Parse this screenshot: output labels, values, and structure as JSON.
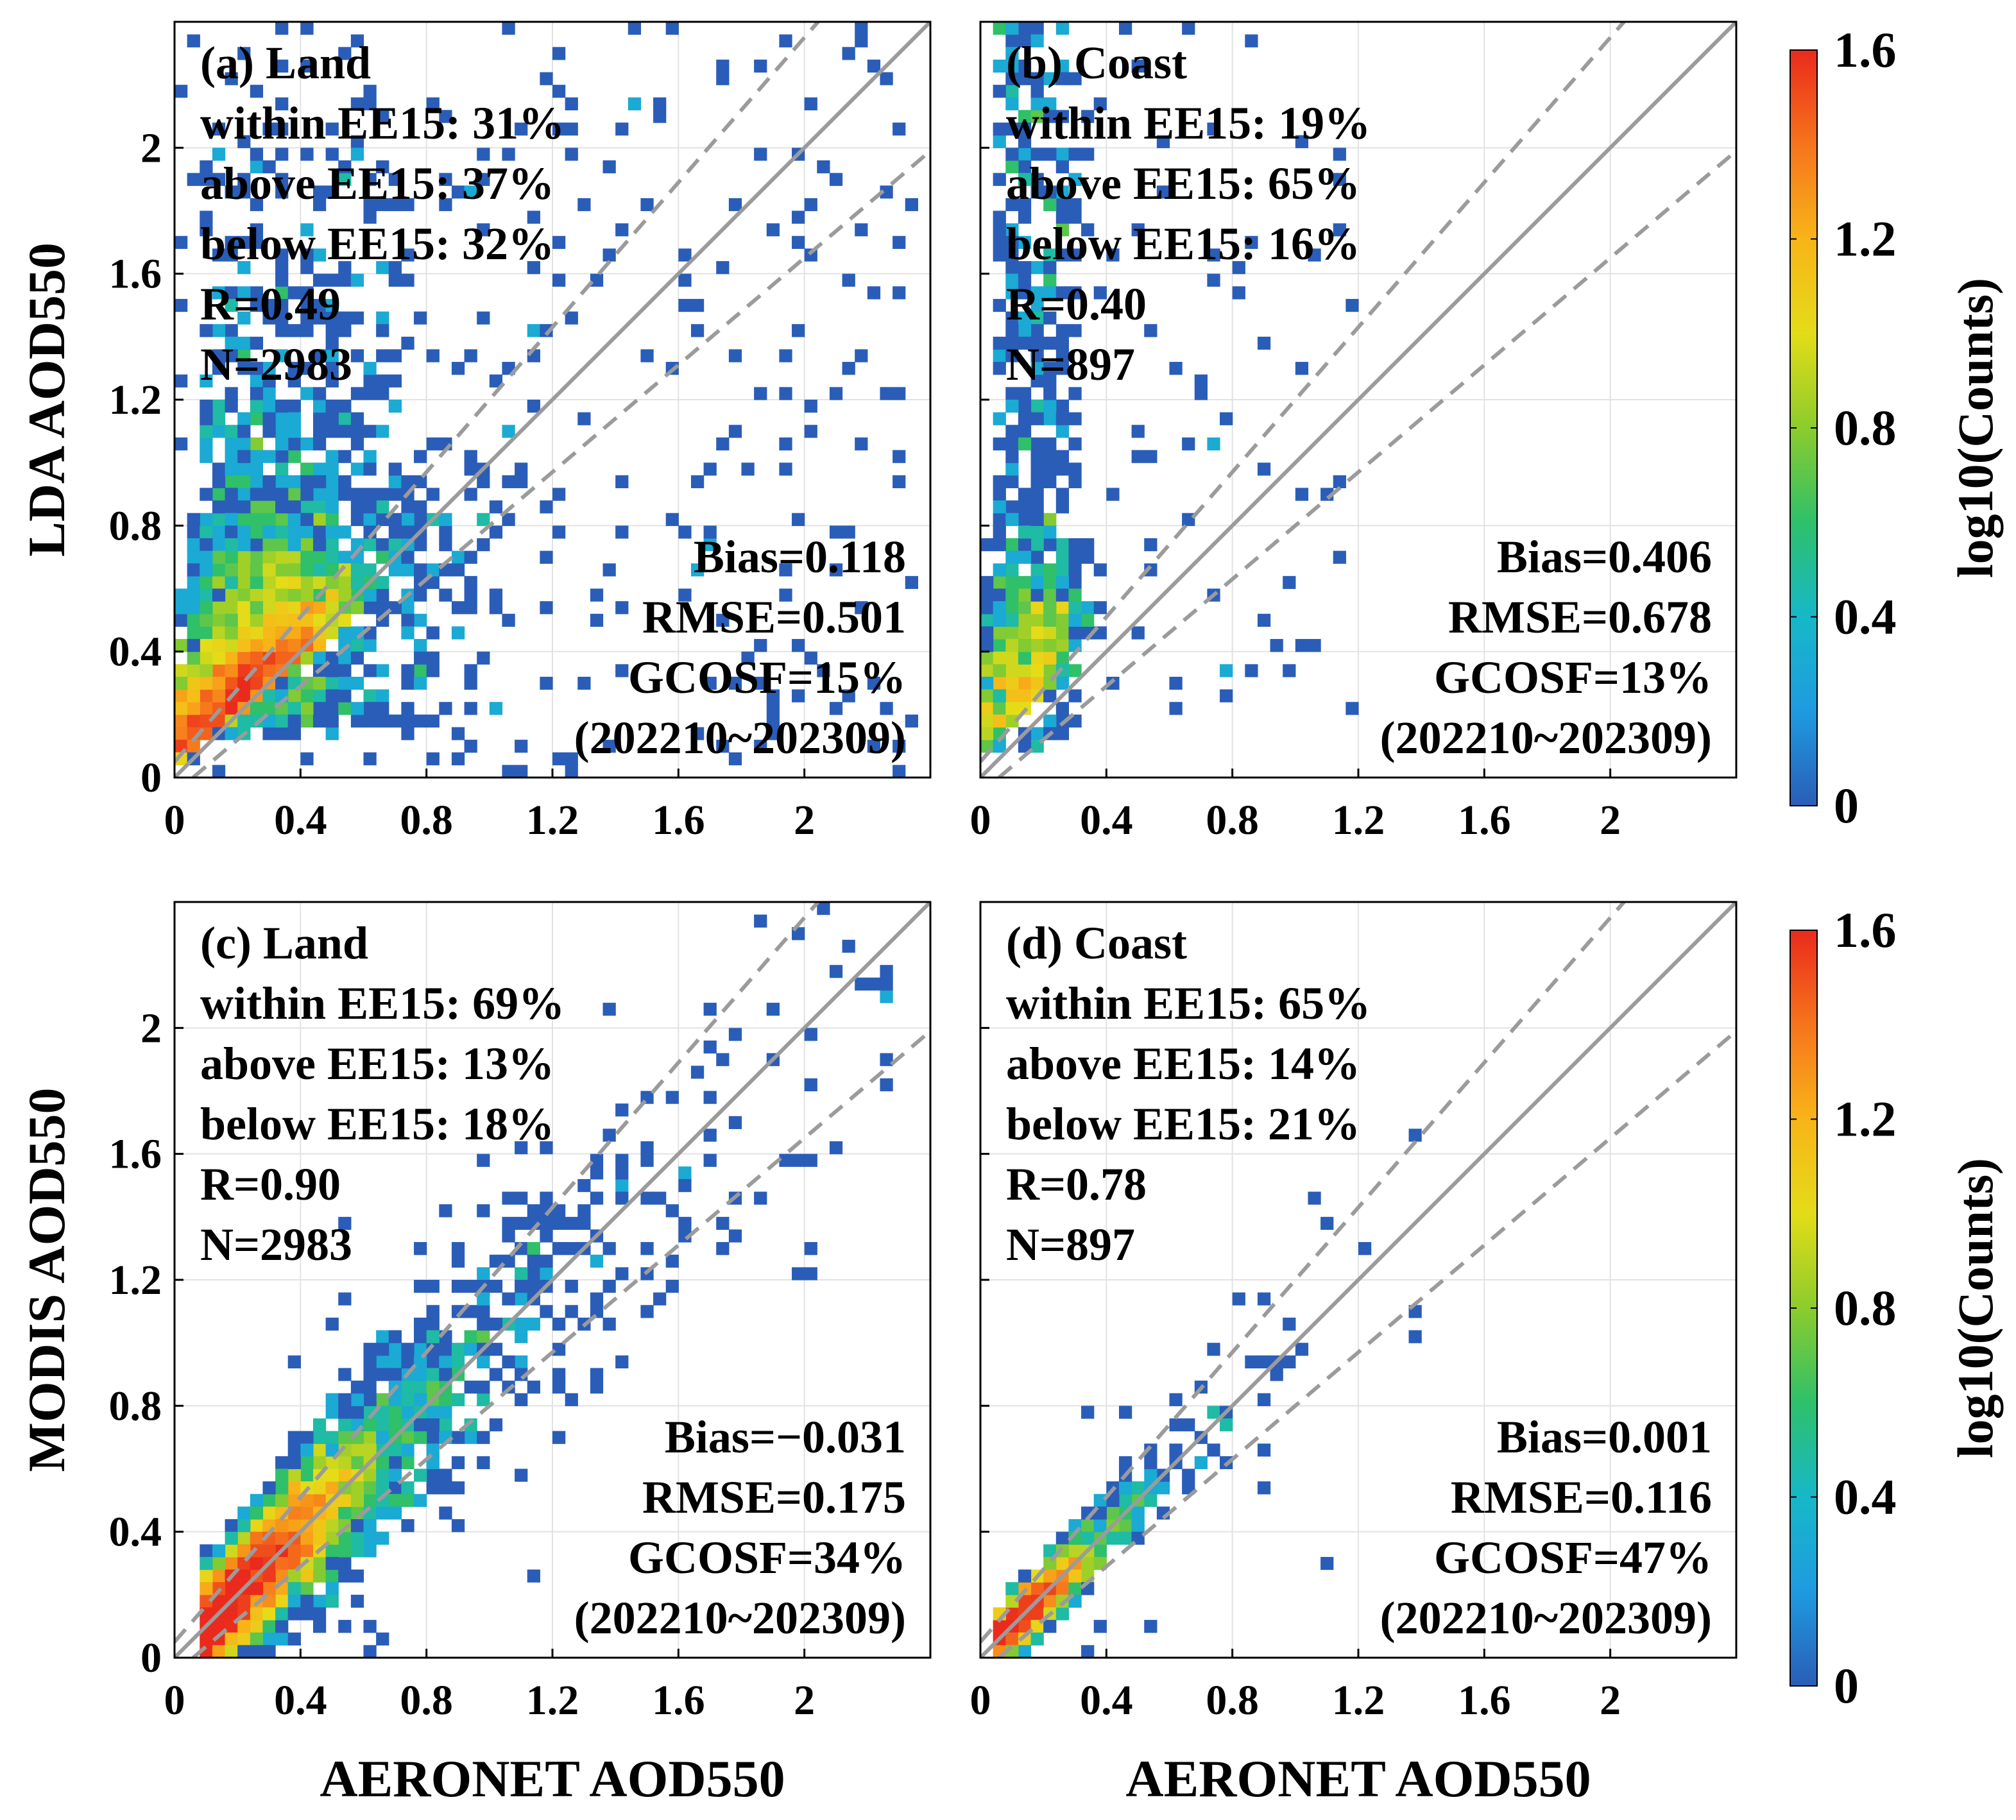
{
  "figure": {
    "x_axis_label": "AERONET AOD550",
    "row_y_labels": [
      "LDA AOD550",
      "MODIS AOD550"
    ],
    "colorbar": {
      "label": "log10(Counts)",
      "ticks": [
        "0",
        "0.4",
        "0.8",
        "1.2",
        "1.6"
      ],
      "colors": [
        "#2a5db8",
        "#1e9be0",
        "#16b8c8",
        "#2ec06a",
        "#8ccc2c",
        "#e4dc18",
        "#f8b418",
        "#f6741c",
        "#ea2a1c"
      ]
    },
    "line_color": "#9b9b9b",
    "axis_ticks": {
      "x": [
        "0",
        "0.4",
        "0.8",
        "1.2",
        "1.6",
        "2"
      ],
      "y": [
        "0",
        "0.4",
        "0.8",
        "1.2",
        "1.6",
        "2"
      ]
    }
  },
  "chart_data": [
    {
      "type": "heatmap",
      "id": "a",
      "title": "(a) Land",
      "xlabel": "AERONET AOD550",
      "ylabel": "LDA AOD550",
      "xlim": [
        0,
        2.4
      ],
      "ylim": [
        0,
        2.4
      ],
      "reference_lines": {
        "one_to_one": "solid",
        "ee15": "dashed, y = x ± (0.05 + 0.15x)"
      },
      "stats_upper": [
        "within EE15: 31%",
        "above EE15: 37%",
        "below EE15: 32%",
        "R=0.49",
        "N=2983"
      ],
      "stats_lower": [
        "Bias=0.118",
        "RMSE=0.501",
        "GCOSF=15%",
        "(202210~202309)"
      ],
      "bin_width": 0.04,
      "max_log10_count": 1.6,
      "distribution": "dense near (0.1-0.3, 0.1-0.3), broad overestimated scatter above 1:1 line up to 2.4"
    },
    {
      "type": "heatmap",
      "id": "b",
      "title": "(b) Coast",
      "xlabel": "AERONET AOD550",
      "ylabel": "LDA AOD550",
      "xlim": [
        0,
        2.4
      ],
      "ylim": [
        0,
        2.4
      ],
      "reference_lines": {
        "one_to_one": "solid",
        "ee15": "dashed, y = x ± (0.05 + 0.15x)"
      },
      "stats_upper": [
        "within EE15: 19%",
        "above EE15: 65%",
        "below EE15: 16%",
        "R=0.40",
        "N=897"
      ],
      "stats_lower": [
        "Bias=0.406",
        "RMSE=0.678",
        "GCOSF=13%",
        "(202210~202309)"
      ],
      "bin_width": 0.04,
      "max_log10_count": 1.6,
      "distribution": "dense near x 0.05-0.3, column of points extending vertically up to 2.4"
    },
    {
      "type": "heatmap",
      "id": "c",
      "title": "(c) Land",
      "xlabel": "AERONET AOD550",
      "ylabel": "MODIS AOD550",
      "xlim": [
        0,
        2.4
      ],
      "ylim": [
        0,
        2.4
      ],
      "reference_lines": {
        "one_to_one": "solid",
        "ee15": "dashed, y = x ± (0.05 + 0.15x)"
      },
      "stats_upper": [
        "within EE15: 69%",
        "above EE15: 13%",
        "below EE15: 18%",
        "R=0.90",
        "N=2983"
      ],
      "stats_lower": [
        "Bias=−0.031",
        "RMSE=0.175",
        "GCOSF=34%",
        "(202210~202309)"
      ],
      "bin_width": 0.04,
      "max_log10_count": 1.6,
      "distribution": "tight band along 1:1 line, densest 0.05-0.4"
    },
    {
      "type": "heatmap",
      "id": "d",
      "title": "(d) Coast",
      "xlabel": "AERONET AOD550",
      "ylabel": "MODIS AOD550",
      "xlim": [
        0,
        2.4
      ],
      "ylim": [
        0,
        2.4
      ],
      "reference_lines": {
        "one_to_one": "solid",
        "ee15": "dashed, y = x ± (0.05 + 0.15x)"
      },
      "stats_upper": [
        "within EE15: 65%",
        "above EE15: 14%",
        "below EE15: 21%",
        "R=0.78",
        "N=897"
      ],
      "stats_lower": [
        "Bias=0.001",
        "RMSE=0.116",
        "GCOSF=47%",
        "(202210~202309)"
      ],
      "bin_width": 0.04,
      "max_log10_count": 1.6,
      "distribution": "tight band along 1:1 line, densest 0.03-0.35, sparse up to ~1.4"
    }
  ]
}
